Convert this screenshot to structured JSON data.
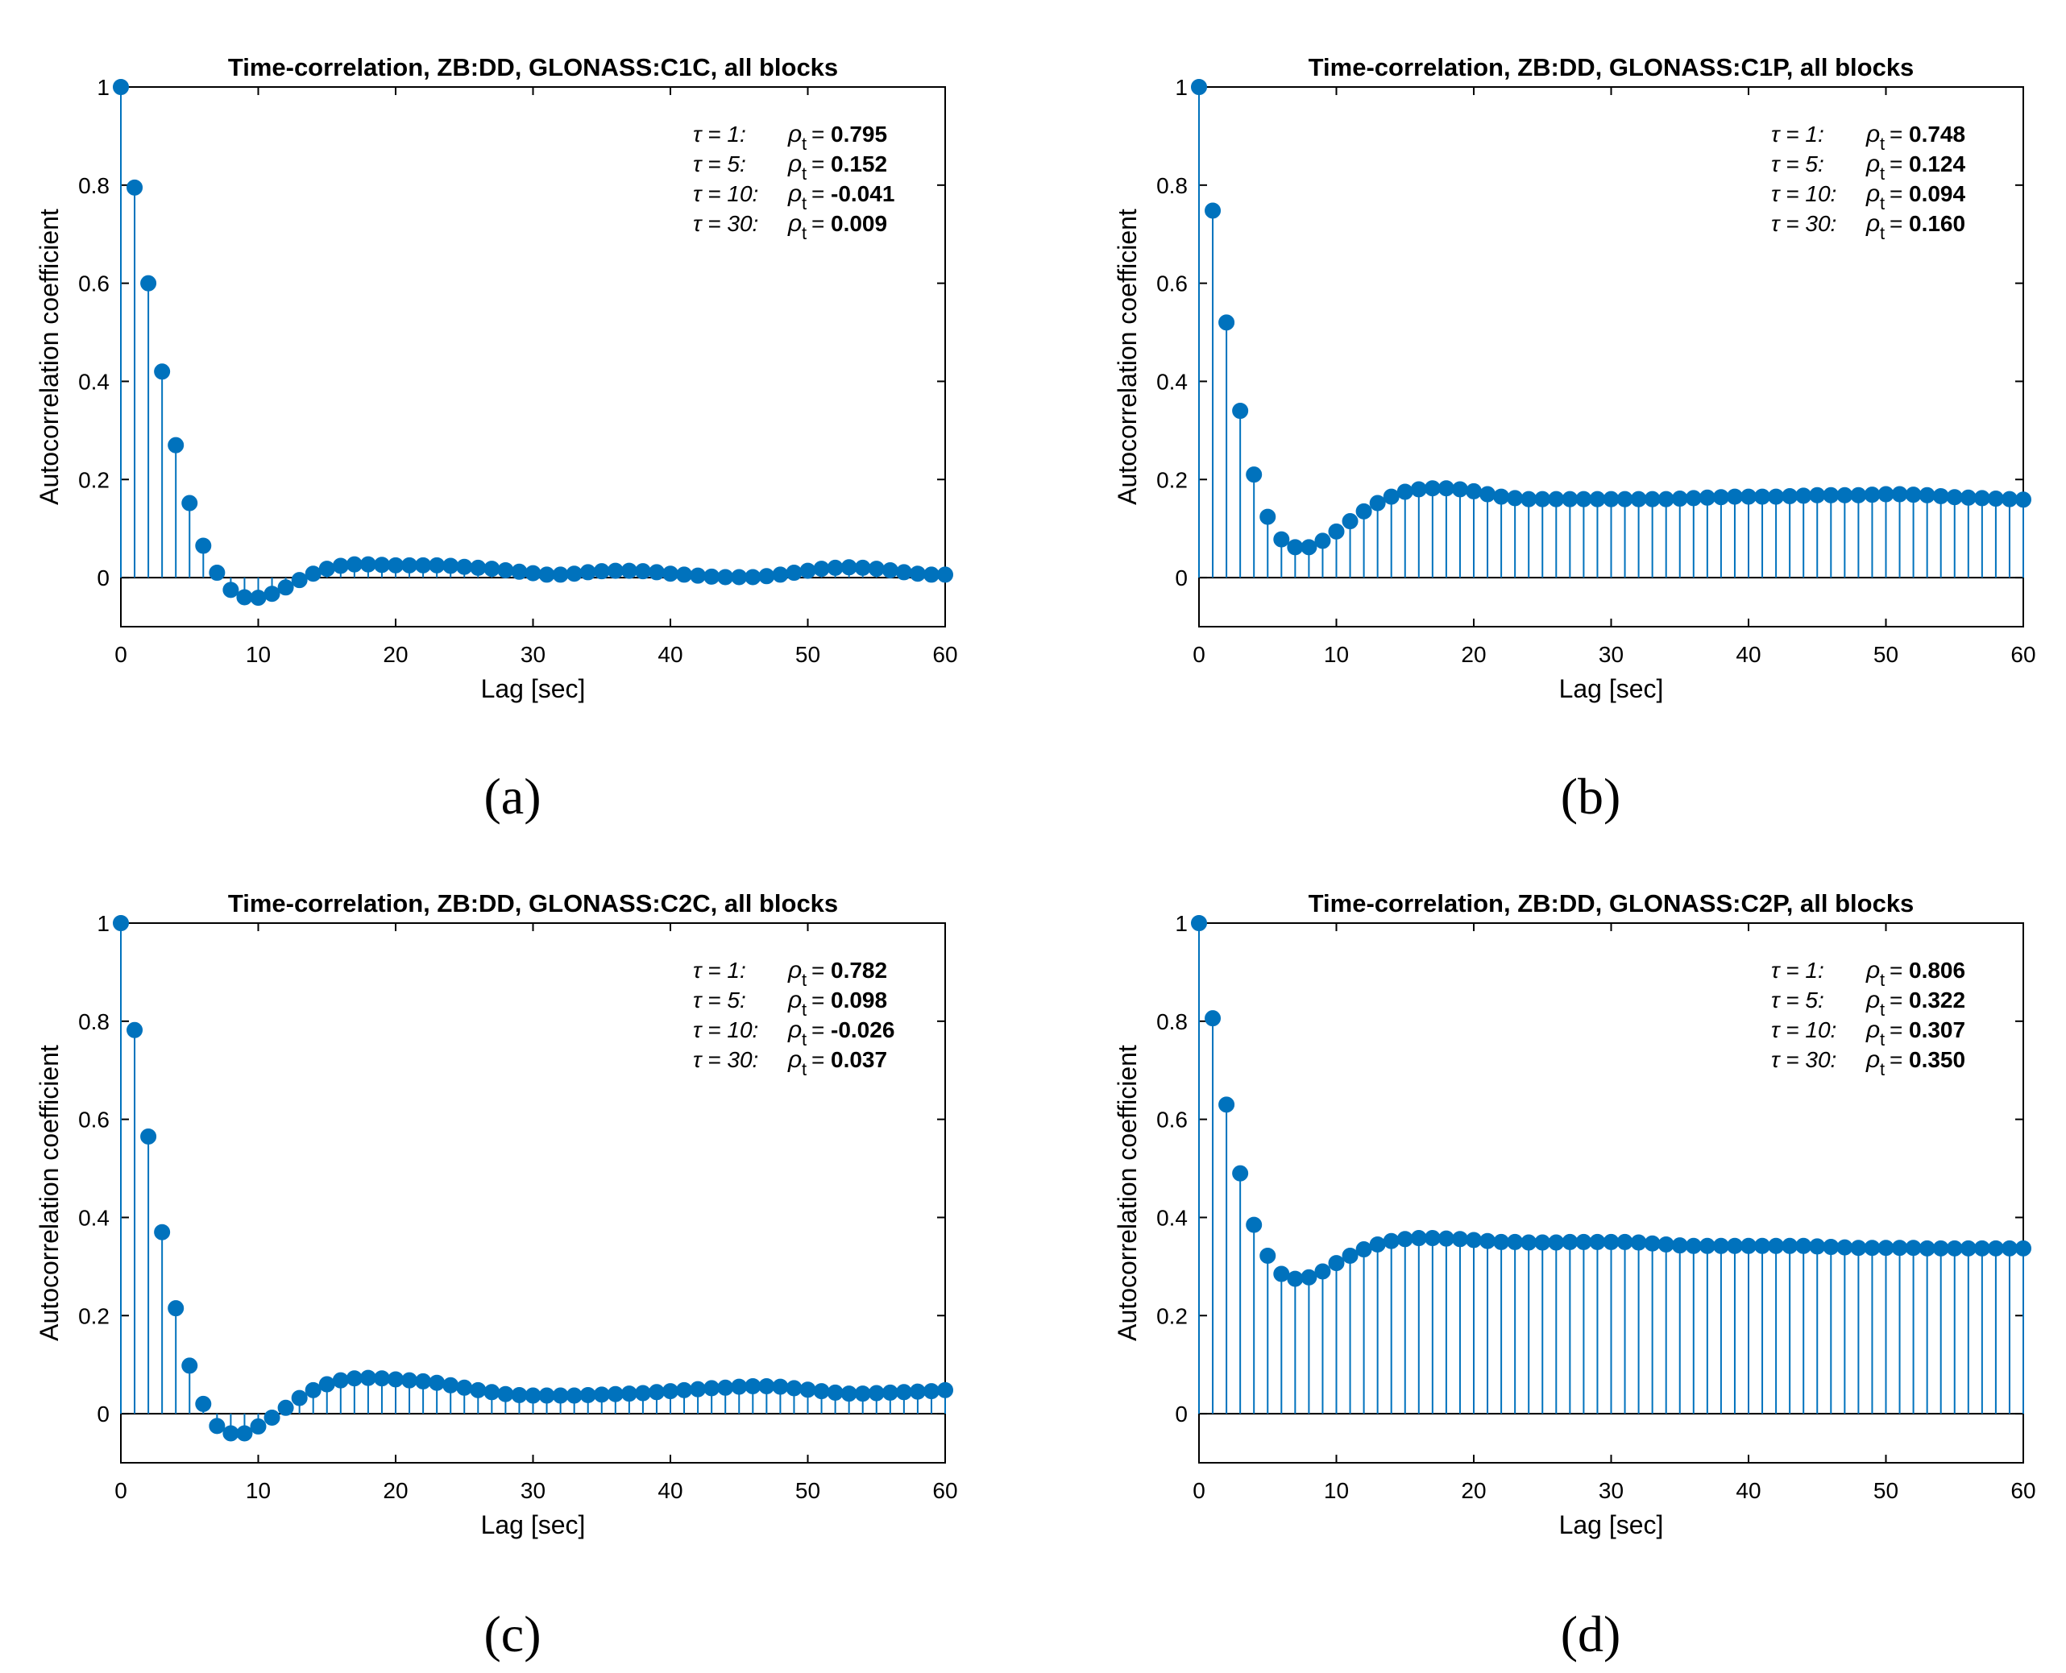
{
  "colors": {
    "stem": "#0072BD",
    "axis": "#000000",
    "background": "#ffffff"
  },
  "chart_data": [
    {
      "panel_label": "(a)",
      "type": "stem",
      "title": "Time-correlation, ZB:DD, GLONASS:C1C, all blocks",
      "xlabel": "Lag [sec]",
      "ylabel": "Autocorrelation coefficient",
      "xlim": [
        0,
        60
      ],
      "ylim": [
        -0.1,
        1
      ],
      "xticks": [
        "0",
        "10",
        "20",
        "30",
        "40",
        "50",
        "60"
      ],
      "yticks": [
        "0",
        "0.2",
        "0.4",
        "0.6",
        "0.8",
        "1"
      ],
      "annotations": [
        {
          "tau": "τ = 1:",
          "rho": "ρ",
          "sub": "t",
          "eq": "=",
          "value": "0.795"
        },
        {
          "tau": "τ = 5:",
          "rho": "ρ",
          "sub": "t",
          "eq": "=",
          "value": "0.152"
        },
        {
          "tau": "τ = 10:",
          "rho": "ρ",
          "sub": "t",
          "eq": "=",
          "value": "-0.041"
        },
        {
          "tau": "τ = 30:",
          "rho": "ρ",
          "sub": "t",
          "eq": "=",
          "value": "0.009"
        }
      ],
      "x": [
        0,
        1,
        2,
        3,
        4,
        5,
        6,
        7,
        8,
        9,
        10,
        11,
        12,
        13,
        14,
        15,
        16,
        17,
        18,
        19,
        20,
        21,
        22,
        23,
        24,
        25,
        26,
        27,
        28,
        29,
        30,
        31,
        32,
        33,
        34,
        35,
        36,
        37,
        38,
        39,
        40,
        41,
        42,
        43,
        44,
        45,
        46,
        47,
        48,
        49,
        50,
        51,
        52,
        53,
        54,
        55,
        56,
        57,
        58,
        59,
        60
      ],
      "values": [
        1,
        0.795,
        0.6,
        0.42,
        0.27,
        0.152,
        0.065,
        0.01,
        -0.025,
        -0.04,
        -0.041,
        -0.033,
        -0.02,
        -0.005,
        0.008,
        0.018,
        0.024,
        0.027,
        0.027,
        0.026,
        0.025,
        0.025,
        0.025,
        0.025,
        0.024,
        0.022,
        0.02,
        0.018,
        0.015,
        0.012,
        0.009,
        0.006,
        0.006,
        0.008,
        0.011,
        0.013,
        0.014,
        0.014,
        0.013,
        0.011,
        0.008,
        0.006,
        0.004,
        0.002,
        0.001,
        0.001,
        0.001,
        0.003,
        0.006,
        0.01,
        0.014,
        0.018,
        0.02,
        0.021,
        0.02,
        0.018,
        0.015,
        0.011,
        0.008,
        0.006,
        0.006
      ]
    },
    {
      "panel_label": "(b)",
      "type": "stem",
      "title": "Time-correlation, ZB:DD, GLONASS:C1P, all blocks",
      "xlabel": "Lag [sec]",
      "ylabel": "Autocorrelation coefficient",
      "xlim": [
        0,
        60
      ],
      "ylim": [
        -0.1,
        1
      ],
      "xticks": [
        "0",
        "10",
        "20",
        "30",
        "40",
        "50",
        "60"
      ],
      "yticks": [
        "0",
        "0.2",
        "0.4",
        "0.6",
        "0.8",
        "1"
      ],
      "annotations": [
        {
          "tau": "τ = 1:",
          "rho": "ρ",
          "sub": "t",
          "eq": "=",
          "value": "0.748"
        },
        {
          "tau": "τ = 5:",
          "rho": "ρ",
          "sub": "t",
          "eq": "=",
          "value": "0.124"
        },
        {
          "tau": "τ = 10:",
          "rho": "ρ",
          "sub": "t",
          "eq": "=",
          "value": "0.094"
        },
        {
          "tau": "τ = 30:",
          "rho": "ρ",
          "sub": "t",
          "eq": "=",
          "value": "0.160"
        }
      ],
      "x": [
        0,
        1,
        2,
        3,
        4,
        5,
        6,
        7,
        8,
        9,
        10,
        11,
        12,
        13,
        14,
        15,
        16,
        17,
        18,
        19,
        20,
        21,
        22,
        23,
        24,
        25,
        26,
        27,
        28,
        29,
        30,
        31,
        32,
        33,
        34,
        35,
        36,
        37,
        38,
        39,
        40,
        41,
        42,
        43,
        44,
        45,
        46,
        47,
        48,
        49,
        50,
        51,
        52,
        53,
        54,
        55,
        56,
        57,
        58,
        59,
        60
      ],
      "values": [
        1,
        0.748,
        0.52,
        0.34,
        0.21,
        0.124,
        0.078,
        0.062,
        0.062,
        0.075,
        0.094,
        0.115,
        0.135,
        0.152,
        0.165,
        0.175,
        0.18,
        0.182,
        0.182,
        0.18,
        0.176,
        0.17,
        0.165,
        0.162,
        0.16,
        0.16,
        0.16,
        0.16,
        0.16,
        0.16,
        0.16,
        0.16,
        0.16,
        0.16,
        0.16,
        0.161,
        0.162,
        0.163,
        0.164,
        0.165,
        0.165,
        0.165,
        0.165,
        0.166,
        0.167,
        0.168,
        0.168,
        0.168,
        0.168,
        0.169,
        0.17,
        0.17,
        0.169,
        0.168,
        0.166,
        0.164,
        0.163,
        0.162,
        0.161,
        0.16,
        0.159
      ]
    },
    {
      "panel_label": "(c)",
      "type": "stem",
      "title": "Time-correlation, ZB:DD, GLONASS:C2C, all blocks",
      "xlabel": "Lag [sec]",
      "ylabel": "Autocorrelation coefficient",
      "xlim": [
        0,
        60
      ],
      "ylim": [
        -0.1,
        1
      ],
      "xticks": [
        "0",
        "10",
        "20",
        "30",
        "40",
        "50",
        "60"
      ],
      "yticks": [
        "0",
        "0.2",
        "0.4",
        "0.6",
        "0.8",
        "1"
      ],
      "annotations": [
        {
          "tau": "τ = 1:",
          "rho": "ρ",
          "sub": "t",
          "eq": "=",
          "value": "0.782"
        },
        {
          "tau": "τ = 5:",
          "rho": "ρ",
          "sub": "t",
          "eq": "=",
          "value": "0.098"
        },
        {
          "tau": "τ = 10:",
          "rho": "ρ",
          "sub": "t",
          "eq": "=",
          "value": "-0.026"
        },
        {
          "tau": "τ = 30:",
          "rho": "ρ",
          "sub": "t",
          "eq": "=",
          "value": "0.037"
        }
      ],
      "x": [
        0,
        1,
        2,
        3,
        4,
        5,
        6,
        7,
        8,
        9,
        10,
        11,
        12,
        13,
        14,
        15,
        16,
        17,
        18,
        19,
        20,
        21,
        22,
        23,
        24,
        25,
        26,
        27,
        28,
        29,
        30,
        31,
        32,
        33,
        34,
        35,
        36,
        37,
        38,
        39,
        40,
        41,
        42,
        43,
        44,
        45,
        46,
        47,
        48,
        49,
        50,
        51,
        52,
        53,
        54,
        55,
        56,
        57,
        58,
        59,
        60
      ],
      "values": [
        1,
        0.782,
        0.565,
        0.37,
        0.215,
        0.098,
        0.02,
        -0.025,
        -0.04,
        -0.04,
        -0.026,
        -0.008,
        0.012,
        0.032,
        0.048,
        0.06,
        0.068,
        0.072,
        0.073,
        0.072,
        0.07,
        0.068,
        0.066,
        0.063,
        0.058,
        0.053,
        0.048,
        0.044,
        0.04,
        0.038,
        0.037,
        0.037,
        0.037,
        0.037,
        0.038,
        0.039,
        0.04,
        0.041,
        0.042,
        0.044,
        0.046,
        0.048,
        0.05,
        0.052,
        0.053,
        0.055,
        0.056,
        0.056,
        0.055,
        0.052,
        0.049,
        0.046,
        0.043,
        0.041,
        0.041,
        0.042,
        0.043,
        0.044,
        0.045,
        0.046,
        0.048
      ]
    },
    {
      "panel_label": "(d)",
      "type": "stem",
      "title": "Time-correlation, ZB:DD, GLONASS:C2P, all blocks",
      "xlabel": "Lag [sec]",
      "ylabel": "Autocorrelation coefficient",
      "xlim": [
        0,
        60
      ],
      "ylim": [
        -0.1,
        1
      ],
      "xticks": [
        "0",
        "10",
        "20",
        "30",
        "40",
        "50",
        "60"
      ],
      "yticks": [
        "0",
        "0.2",
        "0.4",
        "0.6",
        "0.8",
        "1"
      ],
      "annotations": [
        {
          "tau": "τ = 1:",
          "rho": "ρ",
          "sub": "t",
          "eq": "=",
          "value": "0.806"
        },
        {
          "tau": "τ = 5:",
          "rho": "ρ",
          "sub": "t",
          "eq": "=",
          "value": "0.322"
        },
        {
          "tau": "τ = 10:",
          "rho": "ρ",
          "sub": "t",
          "eq": "=",
          "value": "0.307"
        },
        {
          "tau": "τ = 30:",
          "rho": "ρ",
          "sub": "t",
          "eq": "=",
          "value": "0.350"
        }
      ],
      "x": [
        0,
        1,
        2,
        3,
        4,
        5,
        6,
        7,
        8,
        9,
        10,
        11,
        12,
        13,
        14,
        15,
        16,
        17,
        18,
        19,
        20,
        21,
        22,
        23,
        24,
        25,
        26,
        27,
        28,
        29,
        30,
        31,
        32,
        33,
        34,
        35,
        36,
        37,
        38,
        39,
        40,
        41,
        42,
        43,
        44,
        45,
        46,
        47,
        48,
        49,
        50,
        51,
        52,
        53,
        54,
        55,
        56,
        57,
        58,
        59,
        60
      ],
      "values": [
        1,
        0.806,
        0.63,
        0.49,
        0.385,
        0.322,
        0.285,
        0.275,
        0.278,
        0.29,
        0.307,
        0.322,
        0.335,
        0.345,
        0.352,
        0.356,
        0.358,
        0.358,
        0.357,
        0.356,
        0.354,
        0.352,
        0.35,
        0.35,
        0.349,
        0.349,
        0.349,
        0.35,
        0.35,
        0.35,
        0.35,
        0.35,
        0.349,
        0.347,
        0.345,
        0.343,
        0.342,
        0.342,
        0.342,
        0.342,
        0.342,
        0.342,
        0.342,
        0.342,
        0.342,
        0.341,
        0.34,
        0.339,
        0.338,
        0.338,
        0.338,
        0.338,
        0.338,
        0.337,
        0.337,
        0.337,
        0.337,
        0.337,
        0.337,
        0.337,
        0.337
      ]
    }
  ]
}
